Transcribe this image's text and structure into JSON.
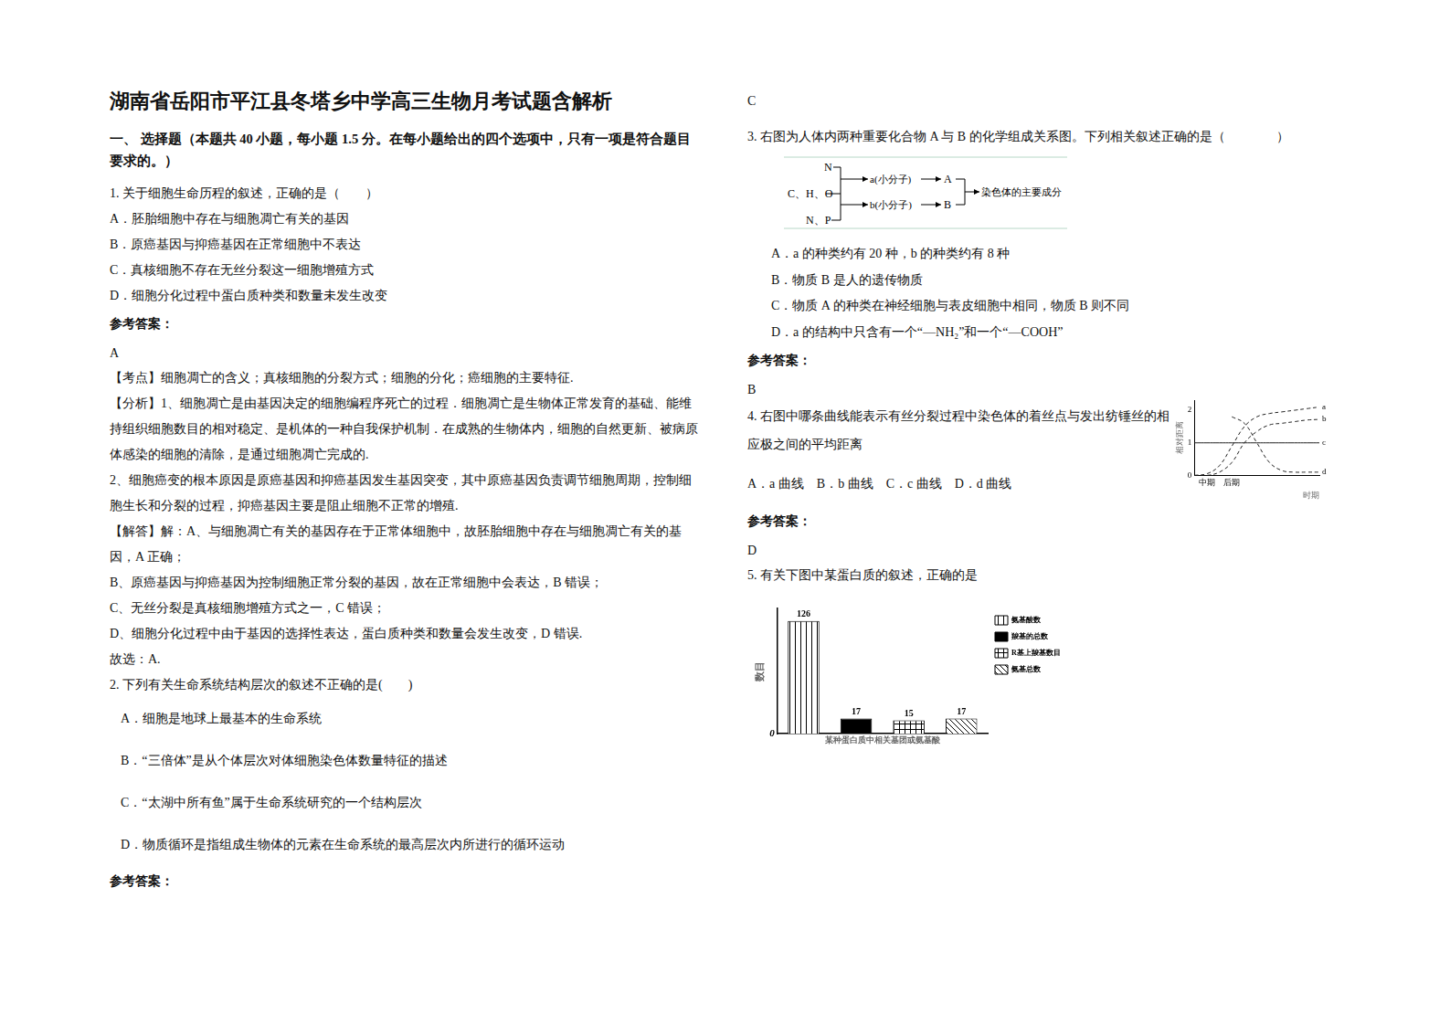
{
  "title": "湖南省岳阳市平江县冬塔乡中学高三生物月考试题含解析",
  "section": "一、 选择题（本题共 40 小题，每小题 1.5 分。在每小题给出的四个选项中，只有一项是符合题目要求的。）",
  "answer_label": "参考答案：",
  "questions": [
    {
      "stem": "1. 关于细胞生命历程的叙述，正确的是（　　）",
      "options": [
        "A．胚胎细胞中存在与细胞凋亡有关的基因",
        "B．原癌基因与抑癌基因在正常细胞中不表达",
        "C．真核细胞不存在无丝分裂这一细胞增殖方式",
        "D．细胞分化过程中蛋白质种类和数量未发生改变"
      ],
      "answer": "A",
      "explanation": [
        "【考点】细胞凋亡的含义；真核细胞的分裂方式；细胞的分化；癌细胞的主要特征.",
        "【分析】1、细胞凋亡是由基因决定的细胞编程序死亡的过程．细胞凋亡是生物体正常发育的基础、能维持组织细胞数目的相对稳定、是机体的一种自我保护机制．在成熟的生物体内，细胞的自然更新、被病原体感染的细胞的清除，是通过细胞凋亡完成的.",
        "2、细胞癌变的根本原因是原癌基因和抑癌基因发生基因突变，其中原癌基因负责调节细胞周期，控制细胞生长和分裂的过程，抑癌基因主要是阻止细胞不正常的增殖.",
        "【解答】解：A、与细胞凋亡有关的基因存在于正常体细胞中，故胚胎细胞中存在与细胞凋亡有关的基因，A 正确；",
        "B、原癌基因与抑癌基因为控制细胞正常分裂的基因，故在正常细胞中会表达，B 错误；",
        "C、无丝分裂是真核细胞增殖方式之一，C 错误；",
        "D、细胞分化过程中由于基因的选择性表达，蛋白质种类和数量会发生改变，D 错误.",
        "故选：A."
      ]
    },
    {
      "stem": "2. 下列有关生命系统结构层次的叙述不正确的是(　　)",
      "options": [
        "A．细胞是地球上最基本的生命系统",
        "B．“三倍体”是从个体层次对体细胞染色体数量特征的描述",
        "C．“太湖中所有鱼”属于生命系统研究的一个结构层次",
        "D．物质循环是指组成生物体的元素在生命系统的最高层次内所进行的循环运动"
      ],
      "answer": "C"
    },
    {
      "stem": "3. 右图为人体内两种重要化合物 A 与 B 的化学组成关系图。下列相关叙述正确的是（　　　　）",
      "diagram": {
        "left_top": "N",
        "left_middle": "C、H、O",
        "left_bottom": "N、P",
        "small_a": "a(小分子)",
        "macro_a": "A",
        "small_b": "b(小分子)",
        "macro_b": "B",
        "result": "染色体的主要成分"
      },
      "options": [
        "A．a 的种类约有 20 种，b 的种类约有 8 种",
        "B．物质 B 是人的遗传物质",
        "C．物质 A 的种类在神经细胞与表皮细胞中相同，物质 B 则不同",
        "D．a 的结构中只含有一个“—NH₂”和一个“—COOH”"
      ],
      "answer": "B"
    },
    {
      "stem": "4. 右图中哪条曲线能表示有丝分裂过程中染色体的着丝点与发出纺锤丝的相应极之间的平均距离",
      "options": [
        "A．a 曲线　B．b 曲线　C．c 曲线　D．d 曲线"
      ],
      "answer": "D"
    },
    {
      "stem": "5. 有关下图中某蛋白质的叙述，正确的是"
    }
  ],
  "chart_data": [
    {
      "type": "line",
      "y_label": "相对距离",
      "x_label": "时期",
      "x": [
        0,
        1,
        2,
        3,
        4,
        5,
        6,
        7,
        8,
        9,
        10
      ],
      "xlim": [
        0,
        10
      ],
      "xticks": [
        {
          "value": 1,
          "label": "中期"
        },
        {
          "value": 3,
          "label": "后期"
        }
      ],
      "ylim": [
        0,
        2.3
      ],
      "yticks": [
        0,
        1,
        2
      ],
      "grid": false,
      "series": [
        {
          "name": "a",
          "color": "#222222",
          "line_style": "dashed",
          "values": [
            0,
            0.05,
            0.3,
            0.9,
            1.5,
            1.8,
            1.9,
            1.95,
            2,
            2.05,
            2.1
          ]
        },
        {
          "name": "b",
          "color": "#222222",
          "line_style": "dashed",
          "values": [
            0,
            0,
            0.1,
            0.4,
            1.0,
            1.35,
            1.55,
            1.6,
            1.65,
            1.7,
            1.72
          ]
        },
        {
          "name": "c",
          "color": "#222222",
          "line_style": "solid",
          "values": [
            1,
            1,
            1,
            1,
            1,
            1,
            1,
            1,
            1,
            1,
            1
          ]
        },
        {
          "name": "d",
          "color": "#222222",
          "line_style": "dashed",
          "values": [
            null,
            null,
            null,
            1.8,
            1.6,
            1.0,
            0.4,
            0.15,
            0.1,
            0.1,
            0.1
          ]
        }
      ]
    },
    {
      "type": "bar",
      "y_label": "数目",
      "x_label": "某种蛋白质中相关基团或氨基酸",
      "categories": [
        "氨基酸数",
        "羧基的总数",
        "R基上羧基数目",
        "氨基总数"
      ],
      "values": [
        126,
        17,
        15,
        17
      ],
      "colors": [
        "#ffffff",
        "#000000",
        "#ffffff",
        "#ffffff"
      ],
      "ylim": [
        0,
        140
      ],
      "yticks": [
        0
      ],
      "tick_labels": "y",
      "data_labels": true,
      "legend": "right",
      "grid": false
    }
  ]
}
